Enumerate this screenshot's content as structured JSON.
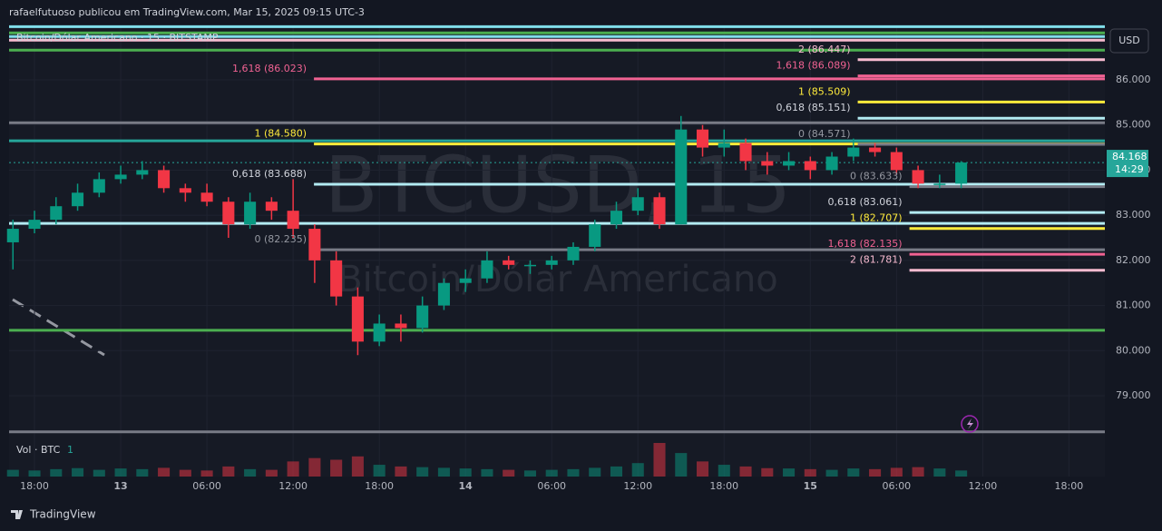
{
  "chart_data": {
    "type": "candlestick",
    "header": "rafaelfutuoso publicou em TradingView.com, Mar 15, 2025 09:15 UTC-3",
    "title": "Bitcoin/Dólar Americano · 15 · BITSTAMP",
    "watermark": "BTCUSD, 15",
    "watermark_sub": "Bitcoin/Dólar Americano",
    "currency": "USD",
    "last_price": {
      "value": 84168,
      "label": "84.168"
    },
    "countdown": "14:29",
    "volume_label": "Vol · BTC",
    "volume_setting": "1",
    "footer": "TradingView",
    "up_color": "#089981",
    "down_color": "#f23645",
    "ylim": [
      78155,
      87207
    ],
    "yticks": [
      {
        "value": 79000,
        "label": "79.000"
      },
      {
        "value": 80000,
        "label": "80.000"
      },
      {
        "value": 81000,
        "label": "81.000"
      },
      {
        "value": 82000,
        "label": "82.000"
      },
      {
        "value": 83000,
        "label": "83.000"
      },
      {
        "value": 84000,
        "label": "84.000"
      },
      {
        "value": 85000,
        "label": "85.000"
      },
      {
        "value": 86000,
        "label": "86.000"
      }
    ],
    "xlim": [
      -1.77,
      74.5
    ],
    "xticks": [
      {
        "value": 0,
        "label": "18:00"
      },
      {
        "value": 6,
        "label": "13"
      },
      {
        "value": 12,
        "label": "06:00"
      },
      {
        "value": 18,
        "label": "12:00"
      },
      {
        "value": 24,
        "label": "18:00"
      },
      {
        "value": 30,
        "label": "14"
      },
      {
        "value": 36,
        "label": "06:00"
      },
      {
        "value": 42,
        "label": "12:00"
      },
      {
        "value": 48,
        "label": "18:00"
      },
      {
        "value": 54,
        "label": "15"
      },
      {
        "value": 60,
        "label": "06:00"
      },
      {
        "value": 66,
        "label": "12:00"
      },
      {
        "value": 72,
        "label": "18:00"
      }
    ],
    "x": [
      -1.5,
      0,
      1.5,
      3,
      4.5,
      6,
      7.5,
      9,
      10.5,
      12,
      13.5,
      15,
      16.5,
      18,
      19.5,
      21,
      22.5,
      24,
      25.5,
      27,
      28.5,
      30,
      31.5,
      33,
      34.5,
      36,
      37.5,
      39,
      40.5,
      42,
      43.5,
      45,
      46.5,
      48,
      49.5,
      51,
      52.5,
      54,
      55.5,
      57,
      58.5,
      60,
      61.5,
      63,
      64.5
    ],
    "open": [
      82400,
      82700,
      82900,
      83200,
      83500,
      83800,
      83900,
      84000,
      83600,
      83500,
      83300,
      82800,
      83300,
      83100,
      82700,
      82000,
      81200,
      80200,
      80600,
      80500,
      81000,
      81500,
      81600,
      82000,
      81900,
      81900,
      82000,
      82300,
      82800,
      83100,
      83400,
      82800,
      84900,
      84500,
      84600,
      84200,
      84100,
      84200,
      84000,
      84300,
      84500,
      84400,
      84000,
      83700,
      83700
    ],
    "high": [
      82900,
      83100,
      83400,
      83700,
      83950,
      84100,
      84200,
      84100,
      83700,
      83700,
      83400,
      83500,
      83400,
      83800,
      82800,
      82200,
      81400,
      80800,
      80800,
      81200,
      81600,
      81800,
      82200,
      82100,
      82000,
      82100,
      82400,
      82900,
      83300,
      83600,
      83500,
      85200,
      85000,
      84900,
      84700,
      84400,
      84400,
      84300,
      84400,
      84700,
      84600,
      84500,
      84100,
      83900,
      84200
    ],
    "low": [
      81800,
      82600,
      82800,
      83100,
      83400,
      83700,
      83800,
      83500,
      83300,
      83200,
      82500,
      82700,
      82900,
      82500,
      81500,
      81000,
      79900,
      80100,
      80200,
      80400,
      80900,
      81300,
      81500,
      81800,
      81700,
      81800,
      81900,
      82200,
      82700,
      83000,
      82700,
      82800,
      84300,
      84300,
      84000,
      83900,
      84000,
      83800,
      83900,
      84200,
      84300,
      83900,
      83600,
      83600,
      83600
    ],
    "close": [
      82700,
      82900,
      83200,
      83500,
      83800,
      83900,
      84000,
      83600,
      83500,
      83300,
      82800,
      83300,
      83100,
      82700,
      82000,
      81200,
      80200,
      80600,
      80500,
      81000,
      81500,
      81600,
      82000,
      81900,
      81900,
      82000,
      82300,
      82800,
      83100,
      83400,
      82800,
      84900,
      84500,
      84600,
      84200,
      84100,
      84200,
      84000,
      84300,
      84500,
      84400,
      84000,
      83700,
      83700,
      84168
    ],
    "volume": [
      20,
      18,
      22,
      25,
      20,
      24,
      22,
      26,
      20,
      18,
      30,
      22,
      20,
      45,
      55,
      50,
      60,
      35,
      30,
      28,
      26,
      24,
      22,
      20,
      18,
      20,
      22,
      26,
      30,
      40,
      100,
      70,
      45,
      35,
      30,
      25,
      24,
      22,
      20,
      24,
      22,
      26,
      28,
      24,
      18
    ],
    "levels": [
      {
        "value": 87180,
        "color": "#80deea"
      },
      {
        "value": 87040,
        "color": "#4caf50"
      },
      {
        "value": 86960,
        "color": "#80deea"
      },
      {
        "value": 86880,
        "color": "#f8bbd0"
      },
      {
        "value": 86660,
        "color": "#4caf50"
      },
      {
        "value": 85050,
        "color": "#787b86"
      },
      {
        "value": 84650,
        "color": "#26a69a"
      },
      {
        "value": 82820,
        "color": "#b2ebf2"
      },
      {
        "value": 80450,
        "color": "#4caf50"
      },
      {
        "value": 78200,
        "color": "#787b86"
      }
    ],
    "fib_sets": [
      {
        "start": 19.45,
        "lines": [
          {
            "value": 86023,
            "label": "1,618 (86.023)",
            "color": "#f06292"
          },
          {
            "value": 84580,
            "label": "1 (84.580)",
            "color": "#ffeb3b"
          },
          {
            "value": 83688,
            "label": "0,618 (83.688)",
            "color": "#b2ebf2"
          },
          {
            "value": 82235,
            "label": "0 (82.235)",
            "color": "#787b86"
          }
        ]
      },
      {
        "start": 57.3,
        "lines": [
          {
            "value": 86447,
            "label": "2 (86.447)",
            "color": "#f8bbd0"
          },
          {
            "value": 86089,
            "label": "1,618 (86.089)",
            "color": "#f06292"
          },
          {
            "value": 85509,
            "label": "1 (85.509)",
            "color": "#ffeb3b"
          },
          {
            "value": 85151,
            "label": "0,618 (85.151)",
            "color": "#b2ebf2"
          },
          {
            "value": 84571,
            "label": "0 (84.571)",
            "color": "#787b86"
          }
        ]
      },
      {
        "start": 60.9,
        "lines": [
          {
            "value": 83633,
            "label": "0 (83.633)",
            "color": "#787b86"
          },
          {
            "value": 83061,
            "label": "0,618 (83.061)",
            "color": "#b2ebf2"
          },
          {
            "value": 82707,
            "label": "1 (82.707)",
            "color": "#ffeb3b"
          },
          {
            "value": 82135,
            "label": "1,618 (82.135)",
            "color": "#f06292"
          },
          {
            "value": 81781,
            "label": "2 (81.781)",
            "color": "#f8bbd0"
          }
        ]
      }
    ]
  }
}
